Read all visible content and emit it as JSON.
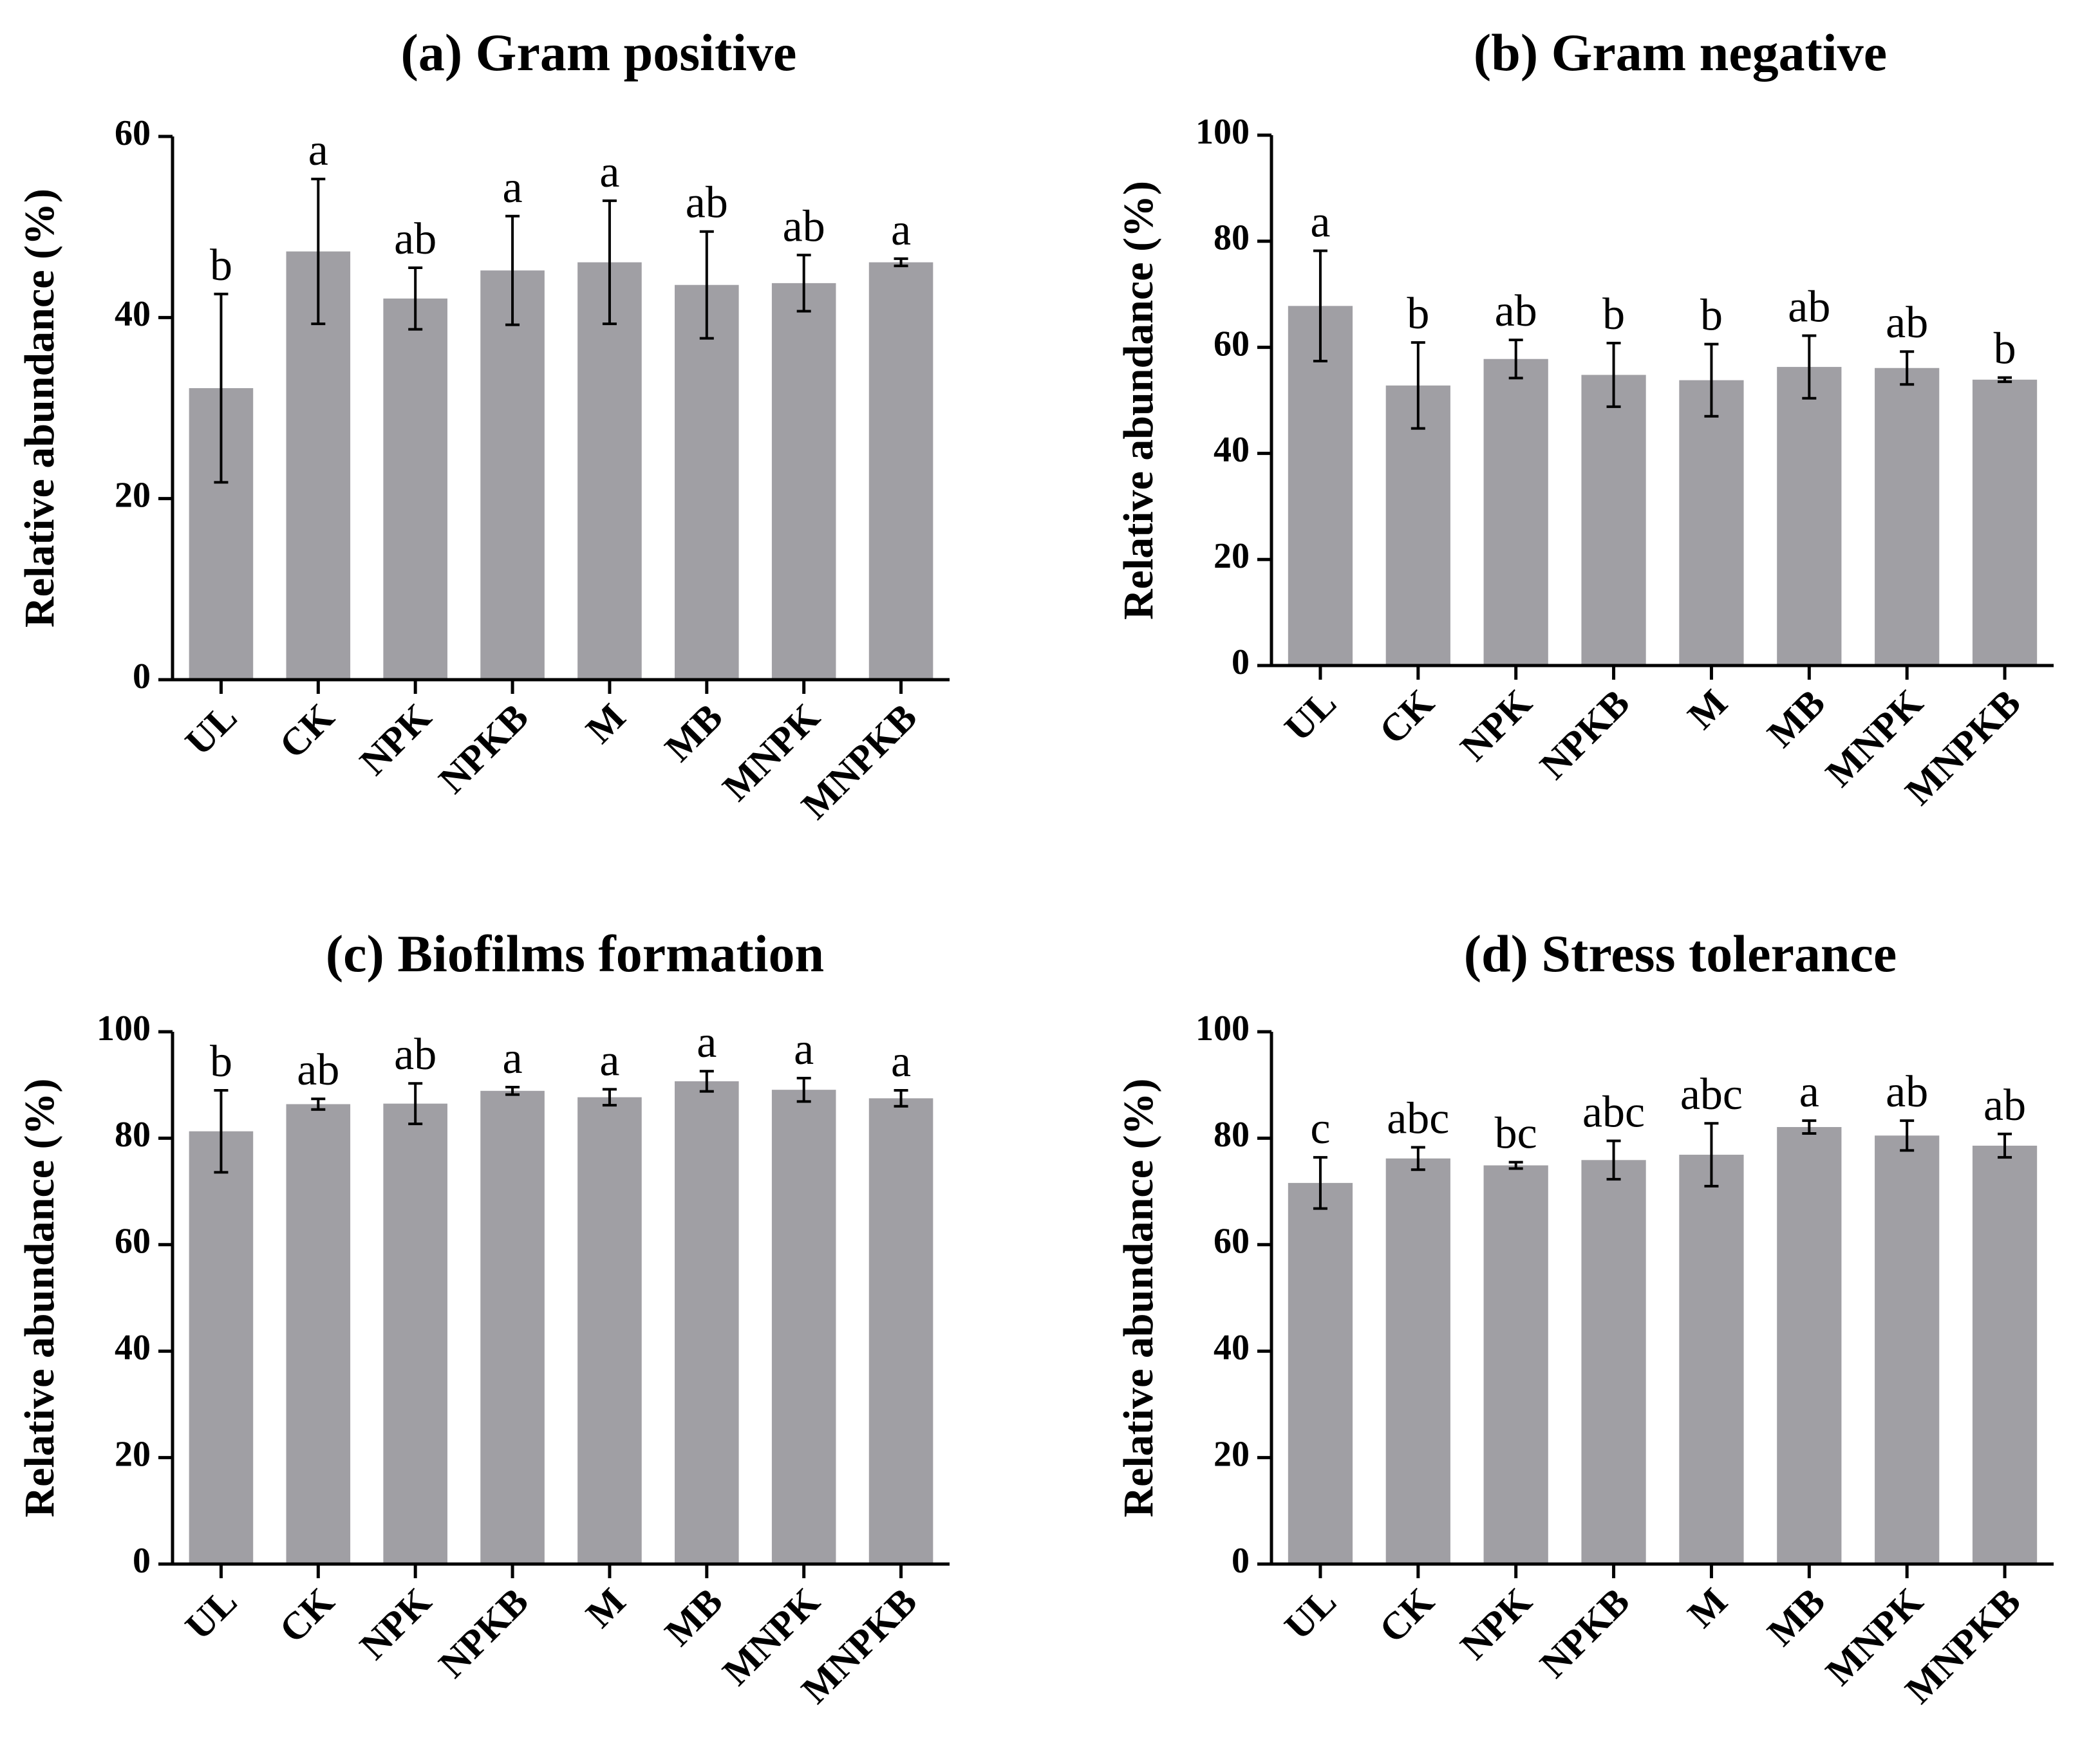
{
  "figure": {
    "bar_color": "#a09fa4",
    "axis_color": "#000000"
  },
  "chart_data": [
    {
      "type": "bar",
      "title": "(a) Gram positive",
      "ylabel": "Relative abundance (%)",
      "xlabel": "",
      "ylim": [
        0,
        60
      ],
      "yticks": [
        0,
        20,
        40,
        60
      ],
      "categories": [
        "UL",
        "CK",
        "NPK",
        "NPKB",
        "M",
        "MB",
        "MNPK",
        "MNPKB"
      ],
      "values": [
        32.2,
        47.3,
        42.1,
        45.2,
        46.1,
        43.6,
        43.8,
        46.1
      ],
      "errors": [
        10.4,
        8.0,
        3.4,
        6.0,
        6.8,
        5.9,
        3.1,
        0.4
      ],
      "significance": [
        "b",
        "a",
        "ab",
        "a",
        "a",
        "ab",
        "ab",
        "a"
      ]
    },
    {
      "type": "bar",
      "title": "(b) Gram negative",
      "ylabel": "Relative abundance (%)",
      "xlabel": "",
      "ylim": [
        0,
        100
      ],
      "yticks": [
        0,
        20,
        40,
        60,
        80,
        100
      ],
      "categories": [
        "UL",
        "CK",
        "NPK",
        "NPKB",
        "M",
        "MB",
        "MNPK",
        "MNPKB"
      ],
      "values": [
        67.8,
        52.8,
        57.8,
        54.8,
        53.8,
        56.3,
        56.1,
        53.9
      ],
      "errors": [
        10.4,
        8.1,
        3.6,
        6.0,
        6.8,
        5.9,
        3.1,
        0.4
      ],
      "significance": [
        "a",
        "b",
        "ab",
        "b",
        "b",
        "ab",
        "ab",
        "b"
      ]
    },
    {
      "type": "bar",
      "title": "(c) Biofilms formation",
      "ylabel": "Relative abundance (%)",
      "xlabel": "",
      "ylim": [
        0,
        100
      ],
      "yticks": [
        0,
        20,
        40,
        60,
        80,
        100
      ],
      "categories": [
        "UL",
        "CK",
        "NPK",
        "NPKB",
        "M",
        "MB",
        "MNPK",
        "MNPKB"
      ],
      "values": [
        81.3,
        86.4,
        86.5,
        88.9,
        87.7,
        90.7,
        89.1,
        87.5
      ],
      "errors": [
        7.7,
        1.0,
        3.8,
        0.7,
        1.5,
        1.9,
        2.2,
        1.5
      ],
      "significance": [
        "b",
        "ab",
        "ab",
        "a",
        "a",
        "a",
        "a",
        "a"
      ]
    },
    {
      "type": "bar",
      "title": "(d) Stress tolerance",
      "ylabel": "Relative abundance (%)",
      "xlabel": "",
      "ylim": [
        0,
        100
      ],
      "yticks": [
        0,
        20,
        40,
        60,
        80,
        100
      ],
      "categories": [
        "UL",
        "CK",
        "NPK",
        "NPKB",
        "M",
        "MB",
        "MNPK",
        "MNPKB"
      ],
      "values": [
        71.6,
        76.2,
        74.9,
        75.9,
        76.9,
        82.1,
        80.5,
        78.6
      ],
      "errors": [
        4.8,
        2.1,
        0.6,
        3.6,
        5.9,
        1.2,
        2.8,
        2.2
      ],
      "significance": [
        "c",
        "abc",
        "bc",
        "abc",
        "abc",
        "a",
        "ab",
        "ab"
      ]
    }
  ]
}
